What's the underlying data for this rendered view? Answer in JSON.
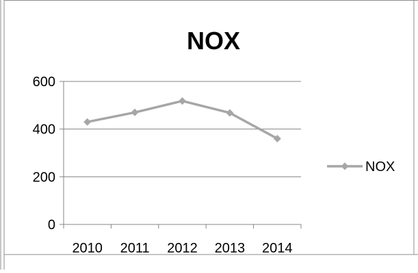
{
  "chart_data": {
    "type": "line",
    "title": "NOX",
    "xlabel": "",
    "ylabel": "",
    "categories": [
      "2010",
      "2011",
      "2012",
      "2013",
      "2014"
    ],
    "series": [
      {
        "name": "NOX",
        "values": [
          430,
          470,
          518,
          468,
          360
        ]
      }
    ],
    "ylim": [
      0,
      600
    ],
    "yticks": [
      0,
      200,
      400,
      600
    ],
    "grid": true,
    "legend": "right",
    "colors": {
      "series": "#a6a6a6",
      "grid": "#858585",
      "axis": "#858585",
      "frame": "#8c8c8c"
    },
    "marker": "diamond"
  }
}
